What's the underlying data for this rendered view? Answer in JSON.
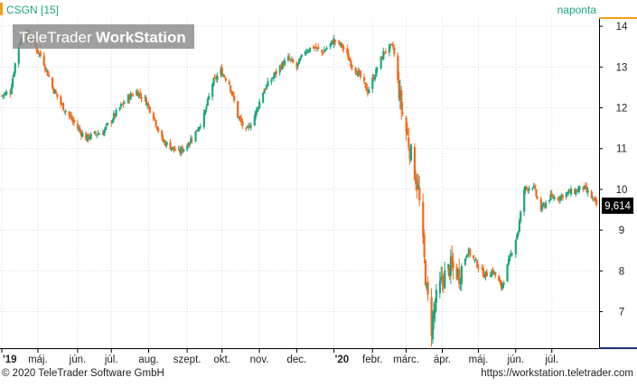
{
  "header": {
    "symbol": "CSGN [15]",
    "period": "naponta"
  },
  "watermark": {
    "brand_light": "TeleTrader",
    "brand_bold": "WorkStation"
  },
  "footer": {
    "copyright": "© 2020 TeleTrader Software GmbH",
    "url": "https://workstation.teletrader.com"
  },
  "last_price_label": "9,614",
  "colors": {
    "up": "#1aa67f",
    "down": "#f26a1b",
    "grid": "#d9d9d9",
    "axis": "#000000",
    "header_text": "#1aa67f",
    "header_accent": "#f0a020",
    "right_axis_accent": "#f0a020",
    "price_box": "#000000"
  },
  "chart_data": {
    "type": "candlestick",
    "title": "CSGN [15]",
    "subtitle": "naponta",
    "ylim": [
      6.4,
      14.3
    ],
    "y_ticks": [
      "7",
      "8",
      "9",
      "10",
      "11",
      "12",
      "13",
      "14"
    ],
    "x_ticks": [
      "'19",
      "máj.",
      "jún.",
      "júl.",
      "aug.",
      "szept.",
      "okt.",
      "nov.",
      "dec.",
      "'20",
      "febr.",
      "márc.",
      "ápr.",
      "máj.",
      "jún.",
      "júl."
    ],
    "x_tick_dates": [
      "2019-04-01",
      "2019-05-01",
      "2019-06-03",
      "2019-07-01",
      "2019-08-01",
      "2019-09-02",
      "2019-10-01",
      "2019-11-01",
      "2019-12-02",
      "2020-01-02",
      "2020-02-03",
      "2020-03-02",
      "2020-04-01",
      "2020-05-01",
      "2020-06-01",
      "2020-07-01"
    ],
    "x_start": "2019-04-01",
    "x_end": "2020-08-07",
    "last_value": 9.614,
    "grid": true,
    "close_path": [
      [
        "2019-04-01",
        12.3
      ],
      [
        "2019-04-08",
        12.4
      ],
      [
        "2019-04-15",
        13.6
      ],
      [
        "2019-04-22",
        13.8
      ],
      [
        "2019-04-29",
        13.5
      ],
      [
        "2019-05-06",
        13.1
      ],
      [
        "2019-05-13",
        12.5
      ],
      [
        "2019-05-20",
        12.1
      ],
      [
        "2019-05-27",
        11.8
      ],
      [
        "2019-06-03",
        11.5
      ],
      [
        "2019-06-10",
        11.25
      ],
      [
        "2019-06-17",
        11.35
      ],
      [
        "2019-06-24",
        11.4
      ],
      [
        "2019-07-01",
        11.7
      ],
      [
        "2019-07-08",
        12.0
      ],
      [
        "2019-07-15",
        12.25
      ],
      [
        "2019-07-22",
        12.4
      ],
      [
        "2019-07-29",
        12.2
      ],
      [
        "2019-08-05",
        11.8
      ],
      [
        "2019-08-12",
        11.2
      ],
      [
        "2019-08-19",
        11.05
      ],
      [
        "2019-08-26",
        10.9
      ],
      [
        "2019-09-02",
        11.1
      ],
      [
        "2019-09-09",
        11.4
      ],
      [
        "2019-09-16",
        11.8
      ],
      [
        "2019-09-23",
        12.6
      ],
      [
        "2019-09-30",
        12.9
      ],
      [
        "2019-10-07",
        12.6
      ],
      [
        "2019-10-14",
        11.8
      ],
      [
        "2019-10-21",
        11.4
      ],
      [
        "2019-10-28",
        11.8
      ],
      [
        "2019-11-04",
        12.4
      ],
      [
        "2019-11-11",
        12.7
      ],
      [
        "2019-11-18",
        13.0
      ],
      [
        "2019-11-25",
        13.2
      ],
      [
        "2019-12-02",
        13.0
      ],
      [
        "2019-12-09",
        13.4
      ],
      [
        "2019-12-16",
        13.5
      ],
      [
        "2019-12-23",
        13.35
      ],
      [
        "2020-01-02",
        13.65
      ],
      [
        "2020-01-09",
        13.5
      ],
      [
        "2020-01-16",
        13.1
      ],
      [
        "2020-01-23",
        12.8
      ],
      [
        "2020-01-30",
        12.4
      ],
      [
        "2020-02-06",
        12.9
      ],
      [
        "2020-02-13",
        13.4
      ],
      [
        "2020-02-20",
        13.5
      ],
      [
        "2020-02-27",
        12.0
      ],
      [
        "2020-03-05",
        11.0
      ],
      [
        "2020-03-12",
        10.0
      ],
      [
        "2020-03-16",
        8.6
      ],
      [
        "2020-03-19",
        7.5
      ],
      [
        "2020-03-23",
        6.6
      ],
      [
        "2020-03-26",
        7.2
      ],
      [
        "2020-04-01",
        7.8
      ],
      [
        "2020-04-08",
        8.1
      ],
      [
        "2020-04-15",
        7.9
      ],
      [
        "2020-04-22",
        8.5
      ],
      [
        "2020-04-29",
        8.2
      ],
      [
        "2020-05-06",
        7.9
      ],
      [
        "2020-05-13",
        8.0
      ],
      [
        "2020-05-20",
        7.6
      ],
      [
        "2020-05-27",
        8.3
      ],
      [
        "2020-06-03",
        9.0
      ],
      [
        "2020-06-08",
        10.0
      ],
      [
        "2020-06-15",
        10.1
      ],
      [
        "2020-06-22",
        9.5
      ],
      [
        "2020-06-29",
        9.8
      ],
      [
        "2020-07-06",
        9.8
      ],
      [
        "2020-07-13",
        9.9
      ],
      [
        "2020-07-20",
        9.95
      ],
      [
        "2020-07-27",
        10.05
      ],
      [
        "2020-08-03",
        9.8
      ],
      [
        "2020-08-07",
        9.614
      ]
    ]
  }
}
